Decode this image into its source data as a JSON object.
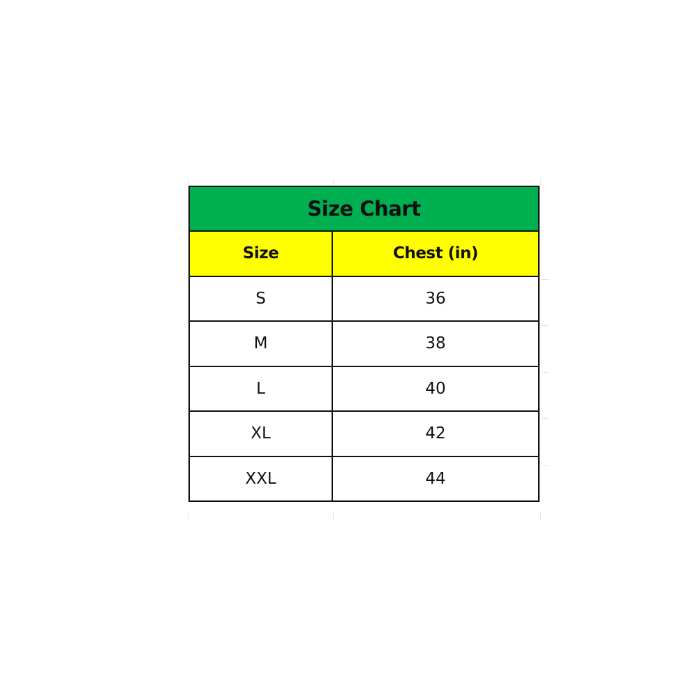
{
  "title": "Size Chart",
  "colors": {
    "title_bg": "#00B050",
    "header_bg": "#FFFF00"
  },
  "headers": [
    "Size",
    "Chest (in)"
  ],
  "rows": [
    {
      "size": "S",
      "chest": "36"
    },
    {
      "size": "M",
      "chest": "38"
    },
    {
      "size": "L",
      "chest": "40"
    },
    {
      "size": "XL",
      "chest": "42"
    },
    {
      "size": "XXL",
      "chest": "44"
    }
  ]
}
